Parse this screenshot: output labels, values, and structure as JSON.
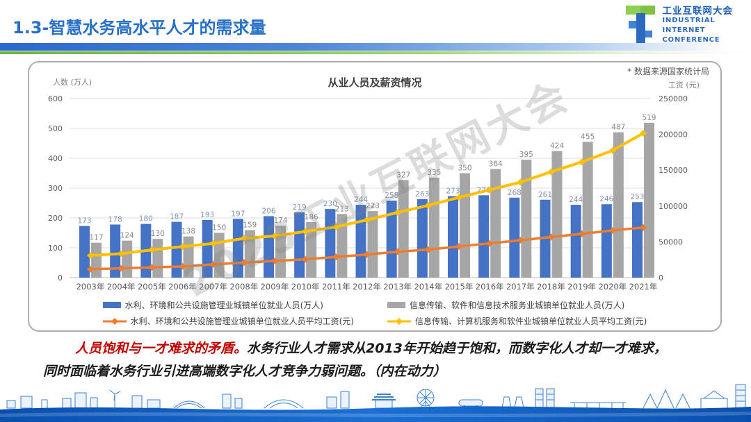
{
  "header": {
    "title": "1.3-智慧水务高水平人才的需求量",
    "logo": {
      "cn": "工业互联网大会",
      "en_lines": [
        "INDUSTRIAL",
        "INTERNET",
        "CONFERENCE"
      ]
    }
  },
  "chart_note": "* 数据来源国家统计局",
  "watermark": "2023工业互联网大会",
  "chart_data": {
    "type": "combo (grouped bars + lines, dual axis)",
    "title": "从业人员及薪资情况",
    "grid": true,
    "legend_position": "bottom",
    "left_axis": {
      "label": "人数 (万人)",
      "max": 600,
      "ticks": [
        0,
        100,
        200,
        300,
        400,
        500,
        600
      ]
    },
    "right_axis": {
      "label": "工资 (元)",
      "max": 250000,
      "ticks": [
        0,
        50000,
        100000,
        150000,
        200000,
        250000
      ]
    },
    "categories": [
      "2003年",
      "2004年",
      "2005年",
      "2006年",
      "2007年",
      "2008年",
      "2009年",
      "2010年",
      "2011年",
      "2012年",
      "2013年",
      "2014年",
      "2015年",
      "2016年",
      "2017年",
      "2018年",
      "2019年",
      "2020年",
      "2021年"
    ],
    "series": [
      {
        "name": "水利、环境和公共设施管理业城镇单位就业人员(万人)",
        "type": "bar",
        "axis": "left",
        "color": "#4472C4",
        "label_color": "#8094b8",
        "values": [
          173,
          178,
          180,
          187,
          193,
          197,
          206,
          219,
          230,
          244,
          258,
          263,
          273,
          276,
          268,
          261,
          244,
          246,
          253
        ]
      },
      {
        "name": "信息传输、软件和信息技术服务业城镇单位就业人员(万人)",
        "type": "bar",
        "axis": "left",
        "color": "#A6A6A6",
        "label_color": "#878787",
        "values": [
          117,
          124,
          130,
          138,
          150,
          159,
          174,
          186,
          213,
          223,
          327,
          335,
          350,
          364,
          395,
          424,
          455,
          487,
          519
        ]
      },
      {
        "name": "水利、环境和公共设施管理业城镇单位就业人员平均工资(元)",
        "type": "line",
        "axis": "right",
        "color": "#ED7D31",
        "width": 3.5,
        "values": [
          11800,
          13000,
          14300,
          15600,
          18400,
          21100,
          23200,
          25500,
          28900,
          32300,
          36100,
          39200,
          43500,
          47800,
          52200,
          56700,
          61200,
          65800,
          70000
        ]
      },
      {
        "name": "信息传输、计算机服务和软件业城镇单位就业人员平均工资(元)",
        "type": "line",
        "axis": "right",
        "color": "#FFC000",
        "width": 4,
        "values": [
          30900,
          33400,
          38800,
          43400,
          47700,
          54900,
          58200,
          64400,
          70900,
          80500,
          90900,
          100800,
          112000,
          122500,
          133200,
          147700,
          161400,
          177500,
          201500
        ]
      }
    ]
  },
  "caption": {
    "highlight": "人员饱和与一才难求的矛盾。",
    "line1_rest": "水务行业人才需求从2013年开始趋于饱和，而数字化人才却一才难求，",
    "line2": "同时面临着水务行业引进高端数字化人才竞争力弱问题。（内在动力）"
  }
}
